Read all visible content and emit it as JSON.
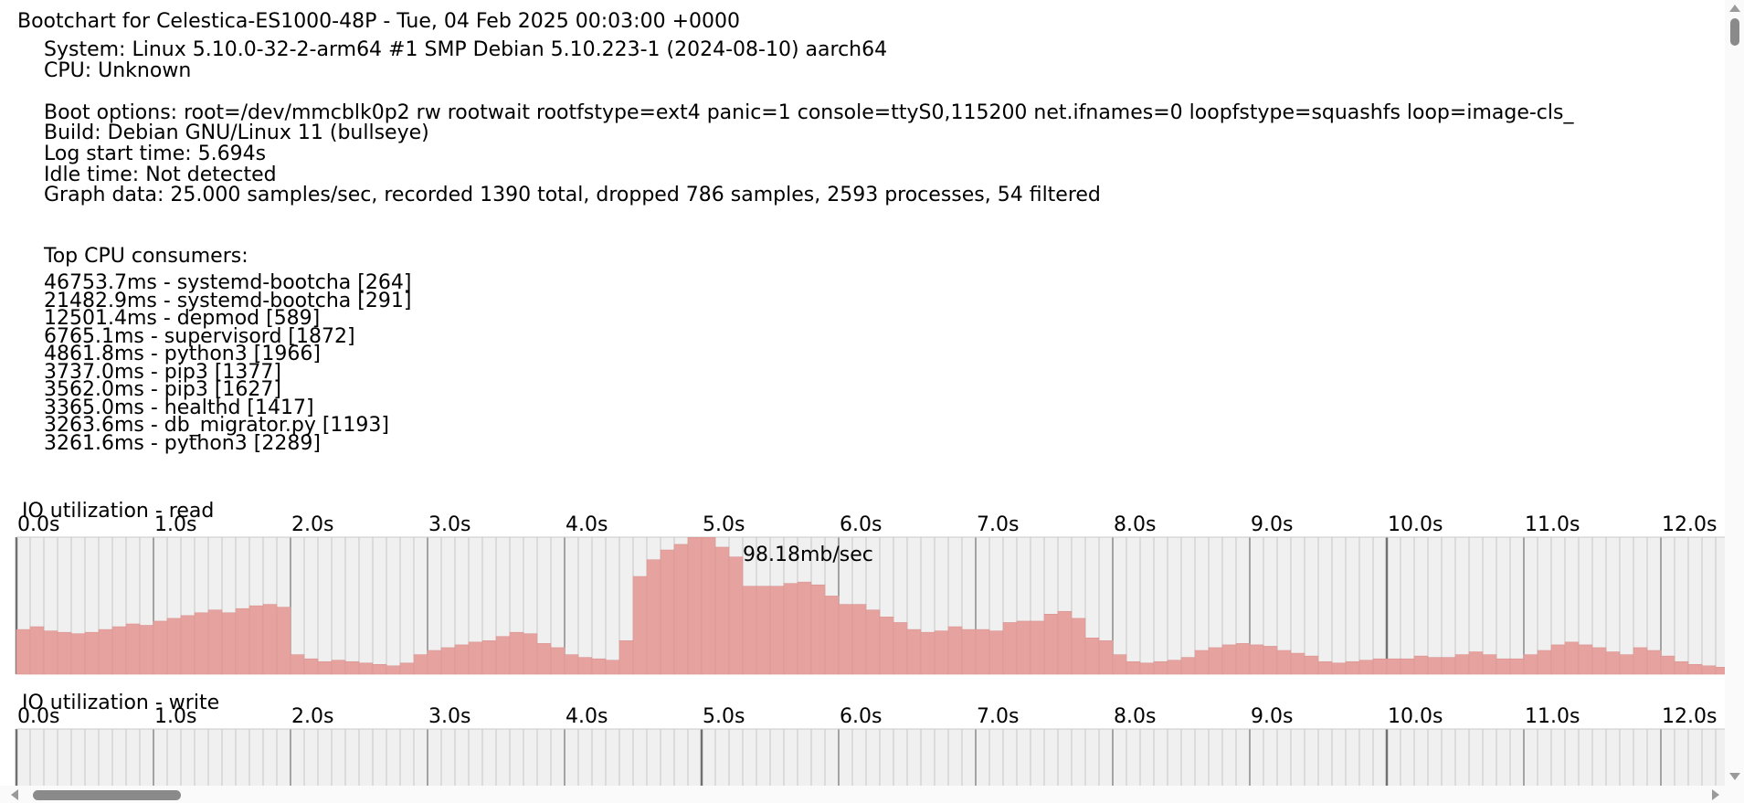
{
  "header": {
    "title": "Bootchart for Celestica-ES1000-48P - Tue, 04 Feb 2025 00:03:00 +0000",
    "system": "System: Linux 5.10.0-32-2-arm64 #1 SMP Debian 5.10.223-1 (2024-08-10) aarch64",
    "cpu": "CPU: Unknown",
    "boot_options": "Boot options: root=/dev/mmcblk0p2 rw rootwait rootfstype=ext4 panic=1 console=ttyS0,115200 net.ifnames=0 loopfstype=squashfs loop=image-cls_",
    "build": "Build: Debian GNU/Linux 11 (bullseye)",
    "log_start": "Log start time: 5.694s",
    "idle": "Idle time: Not detected",
    "graph_data": "Graph data: 25.000 samples/sec, recorded 1390 total, dropped 786 samples, 2593 processes, 54 filtered"
  },
  "top_cpu": {
    "heading": "Top CPU consumers:",
    "items": [
      "46753.7ms - systemd-bootcha [264]",
      "21482.9ms - systemd-bootcha [291]",
      "12501.4ms - depmod [589]",
      "6765.1ms - supervisord [1872]",
      "4861.8ms - python3 [1966]",
      "3737.0ms - pip3 [1377]",
      "3562.0ms - pip3 [1627]",
      "3365.0ms - healthd [1417]",
      "3263.6ms - db_migrator.py [1193]",
      "3261.6ms - python3 [2289]"
    ]
  },
  "colors": {
    "io_fill": "#e5a29e",
    "io_stroke": "#d99390",
    "chart_bg": "#f0f0f0",
    "tick_minor": "#bcbcbc",
    "tick_major": "#707070"
  },
  "chart_data": [
    {
      "type": "bar",
      "title": "IO utilization - read",
      "tick_labels": [
        "0.0s",
        "1.0s",
        "2.0s",
        "3.0s",
        "4.0s",
        "5.0s",
        "6.0s",
        "7.0s",
        "8.0s",
        "9.0s",
        "10.0s",
        "11.0s",
        "12.0s"
      ],
      "peak_label": "98.18mb/sec",
      "xlim": [
        0,
        12.5
      ],
      "ylim": [
        0,
        98.18
      ],
      "x": [
        0.0,
        0.1,
        0.2,
        0.3,
        0.4,
        0.5,
        0.6,
        0.7,
        0.8,
        0.9,
        1.0,
        1.1,
        1.2,
        1.3,
        1.4,
        1.5,
        1.6,
        1.7,
        1.8,
        1.9,
        2.0,
        2.1,
        2.2,
        2.3,
        2.4,
        2.5,
        2.6,
        2.7,
        2.8,
        2.9,
        3.0,
        3.1,
        3.2,
        3.3,
        3.4,
        3.5,
        3.6,
        3.7,
        3.8,
        3.9,
        4.0,
        4.1,
        4.2,
        4.3,
        4.4,
        4.5,
        4.6,
        4.7,
        4.8,
        4.9,
        5.0,
        5.1,
        5.2,
        5.3,
        5.4,
        5.5,
        5.6,
        5.7,
        5.8,
        5.9,
        6.0,
        6.1,
        6.2,
        6.3,
        6.4,
        6.5,
        6.6,
        6.7,
        6.8,
        6.9,
        7.0,
        7.1,
        7.2,
        7.3,
        7.4,
        7.5,
        7.6,
        7.7,
        7.8,
        7.9,
        8.0,
        8.1,
        8.2,
        8.3,
        8.4,
        8.5,
        8.6,
        8.7,
        8.8,
        8.9,
        9.0,
        9.1,
        9.2,
        9.3,
        9.4,
        9.5,
        9.6,
        9.7,
        9.8,
        9.9,
        10.0,
        10.1,
        10.2,
        10.3,
        10.4,
        10.5,
        10.6,
        10.7,
        10.8,
        10.9,
        11.0,
        11.1,
        11.2,
        11.3,
        11.4,
        11.5,
        11.6,
        11.7,
        11.8,
        11.9,
        12.0,
        12.1,
        12.2,
        12.3,
        12.4
      ],
      "values": [
        32,
        34,
        31,
        30,
        29,
        30,
        32,
        34,
        36,
        35,
        38,
        40,
        42,
        44,
        46,
        44,
        47,
        49,
        50,
        48,
        14,
        11,
        9,
        10,
        9,
        8,
        7,
        6,
        8,
        14,
        17,
        19,
        21,
        23,
        24,
        27,
        30,
        29,
        22,
        19,
        14,
        12,
        11,
        10,
        24,
        70,
        82,
        89,
        93,
        98,
        98,
        91,
        84,
        63,
        63,
        63,
        65,
        66,
        64,
        56,
        50,
        50,
        46,
        41,
        37,
        32,
        30,
        31,
        34,
        32,
        32,
        31,
        37,
        38,
        38,
        43,
        45,
        40,
        26,
        24,
        14,
        9,
        8,
        9,
        10,
        12,
        17,
        19,
        21,
        22,
        21,
        20,
        17,
        15,
        13,
        9,
        8,
        9,
        10,
        11,
        11,
        11,
        13,
        12,
        12,
        14,
        16,
        14,
        11,
        11,
        14,
        17,
        21,
        23,
        21,
        19,
        16,
        14,
        19,
        17,
        13,
        9,
        7,
        6,
        5
      ]
    },
    {
      "type": "bar",
      "title": "IO utilization - write",
      "tick_labels": [
        "0.0s",
        "1.0s",
        "2.0s",
        "3.0s",
        "4.0s",
        "5.0s",
        "6.0s",
        "7.0s",
        "8.0s",
        "9.0s",
        "10.0s",
        "11.0s",
        "12.0s"
      ],
      "xlim": [
        0,
        12.5
      ],
      "values": []
    }
  ]
}
